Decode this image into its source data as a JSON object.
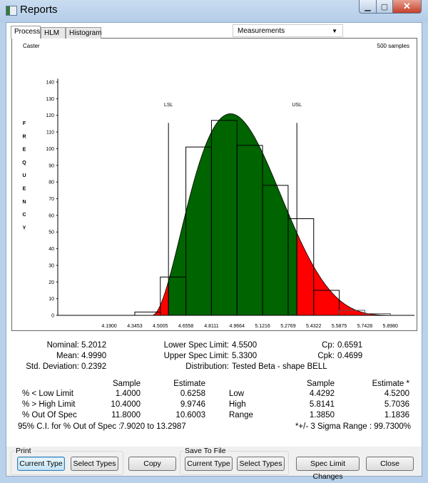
{
  "window": {
    "title": "Reports"
  },
  "tabs": [
    "Process",
    "HLM",
    "Histogram"
  ],
  "dropdown": {
    "selected": "Measurements"
  },
  "chart_header": {
    "left": "Caster",
    "right": "500 samples"
  },
  "chart_data": {
    "type": "bar",
    "title": "",
    "ylabel": "FREQUENCY",
    "ylabel_letters": [
      "F",
      "R",
      "E",
      "Q",
      "U",
      "E",
      "N",
      "C",
      "Y"
    ],
    "ylim": [
      0,
      140
    ],
    "yticks": [
      0,
      10,
      20,
      30,
      40,
      50,
      60,
      70,
      80,
      90,
      100,
      110,
      120,
      130,
      140
    ],
    "xticks": [
      "4.1900",
      "4.3453",
      "4.5005",
      "4.6558",
      "4.8111",
      "4.9664",
      "5.1216",
      "5.2769",
      "5.4322",
      "5.5875",
      "5.7428",
      "5.8980"
    ],
    "bin_edges": [
      4.19,
      4.3453,
      4.5005,
      4.6558,
      4.8111,
      4.9664,
      5.1216,
      5.2769,
      5.4322,
      5.5875,
      5.7428,
      5.898
    ],
    "values": [
      0,
      2,
      23,
      101,
      117,
      102,
      78,
      58,
      15,
      3,
      1
    ],
    "spec_limits": [
      {
        "label": "LSL",
        "value": 4.55
      },
      {
        "label": "USL",
        "value": 5.33
      }
    ],
    "spec_line_height": 115.5,
    "fit_curve": {
      "type": "beta",
      "min": 4.45,
      "max": 6.0,
      "alpha": 3,
      "beta": 5.5,
      "peak": 121
    },
    "colors": {
      "in_spec": "#006400",
      "out_of_spec": "#ff0000",
      "bar_outline": "#000000"
    }
  },
  "stats": {
    "nominal": {
      "label": "Nominal:",
      "value": "5.2012"
    },
    "mean": {
      "label": "Mean:",
      "value": "4.9990"
    },
    "std": {
      "label": "Std. Deviation:",
      "value": "0.2392"
    },
    "lsl": {
      "label": "Lower Spec Limit:",
      "value": "4.5500"
    },
    "usl": {
      "label": "Upper Spec Limit:",
      "value": "5.3300"
    },
    "dist": {
      "label": "Distribution:",
      "value": "Tested Beta - shape BELL"
    },
    "cp": {
      "label": "Cp:",
      "value": "0.6591"
    },
    "cpk": {
      "label": "Cpk:",
      "value": "0.4699"
    }
  },
  "table": {
    "left_headers": [
      "Sample",
      "Estimate"
    ],
    "left_rows": [
      {
        "label": "% < Low Limit",
        "sample": "1.4000",
        "estimate": "0.6258"
      },
      {
        "label": "% > High Limit",
        "sample": "10.4000",
        "estimate": "9.9746"
      },
      {
        "label": "% Out Of Spec",
        "sample": "11.8000",
        "estimate": "10.6003"
      }
    ],
    "right_headers": [
      "Sample",
      "Estimate *"
    ],
    "right_rows": [
      {
        "label": "Low",
        "sample": "4.4292",
        "estimate": "4.5200"
      },
      {
        "label": "High",
        "sample": "5.8141",
        "estimate": "5.7036"
      },
      {
        "label": "Range",
        "sample": "1.3850",
        "estimate": "1.1836"
      }
    ],
    "ci_label": "95% C.I. for % Out of Spec :",
    "ci_value": "7.9020 to 13.2987",
    "sigma_note": "*+/- 3 Sigma Range : 99.7300%"
  },
  "buttons": {
    "print_group": "Print",
    "save_group": "Save To File",
    "print_current": "Current Type",
    "print_select": "Select Types",
    "copy": "Copy",
    "save_current": "Current Type",
    "save_select": "Select Types",
    "spec_changes": "Spec Limit Changes",
    "close": "Close"
  }
}
